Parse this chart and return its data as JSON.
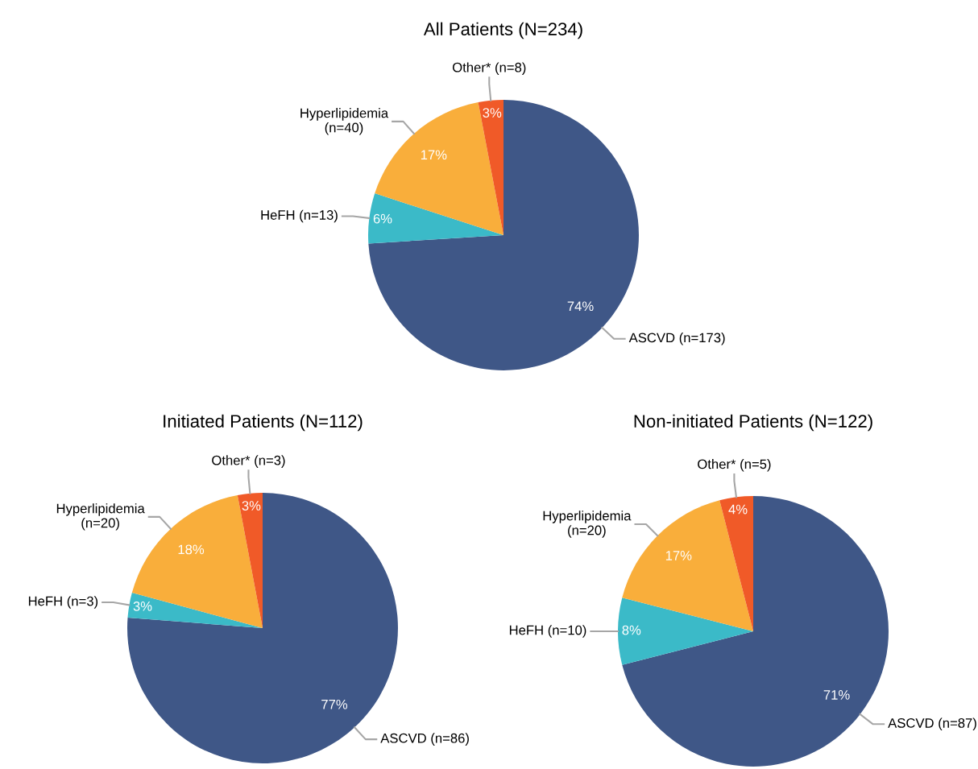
{
  "chart_data": [
    {
      "type": "pie",
      "title": "All Patients (N=234)",
      "categories": [
        "ASCVD (n=173)",
        "HeFH (n=13)",
        "Hyperlipidemia\n(n=40)",
        "Other* (n=8)"
      ],
      "values": [
        74,
        6,
        17,
        3
      ],
      "value_labels": [
        "74%",
        "6%",
        "17%",
        "3%"
      ],
      "colors": [
        "#3f5787",
        "#3bbac8",
        "#f9ae3b",
        "#f05a28"
      ]
    },
    {
      "type": "pie",
      "title": "Initiated Patients (N=112)",
      "categories": [
        "ASCVD (n=86)",
        "HeFH (n=3)",
        "Hyperlipidemia\n(n=20)",
        "Other* (n=3)"
      ],
      "values": [
        77,
        3,
        18,
        3
      ],
      "value_labels": [
        "77%",
        "3%",
        "18%",
        "3%"
      ],
      "colors": [
        "#3f5787",
        "#3bbac8",
        "#f9ae3b",
        "#f05a28"
      ]
    },
    {
      "type": "pie",
      "title": "Non-initiated Patients (N=122)",
      "categories": [
        "ASCVD (n=87)",
        "HeFH (n=10)",
        "Hyperlipidemia\n(n=20)",
        "Other* (n=5)"
      ],
      "values": [
        71,
        8,
        17,
        4
      ],
      "value_labels": [
        "71%",
        "8%",
        "17%",
        "4%"
      ],
      "colors": [
        "#3f5787",
        "#3bbac8",
        "#f9ae3b",
        "#f05a28"
      ]
    }
  ]
}
